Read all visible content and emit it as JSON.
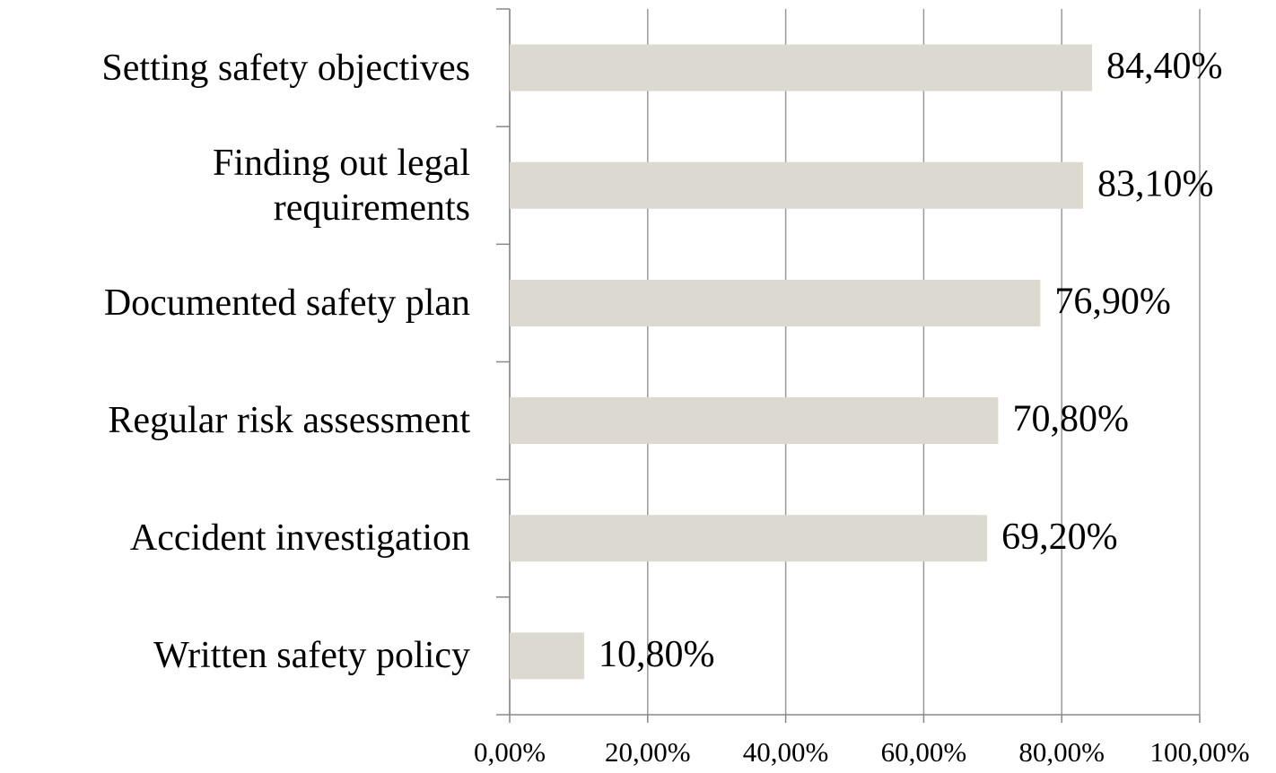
{
  "chart_data": {
    "type": "bar",
    "orientation": "horizontal",
    "categories": [
      "Setting safety objectives",
      "Finding out legal requirements",
      "Documented safety plan",
      "Regular risk assessment",
      "Accident investigation",
      "Written safety policy"
    ],
    "values": [
      84.4,
      83.1,
      76.9,
      70.8,
      69.2,
      10.8
    ],
    "value_labels": [
      "84,40%",
      "83,10%",
      "76,90%",
      "70,80%",
      "69,20%",
      "10,80%"
    ],
    "color": "#dcd9d0",
    "xlim": [
      0,
      100
    ],
    "xticks": [
      {
        "value": 0,
        "label": "0,00%"
      },
      {
        "value": 20,
        "label": "20,00%"
      },
      {
        "value": 40,
        "label": "40,00%"
      },
      {
        "value": 60,
        "label": "60,00%"
      },
      {
        "value": 80,
        "label": "80,00%"
      },
      {
        "value": 100,
        "label": "100,00%"
      }
    ],
    "grid": true
  }
}
